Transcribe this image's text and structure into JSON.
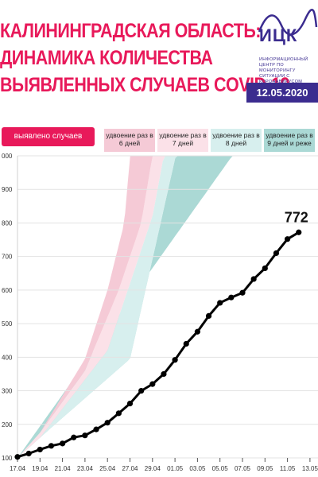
{
  "header": {
    "title_line1": "КАЛИНИНГРАДСКАЯ ОБЛАСТЬ:",
    "title_line2": "ДИНАМИКА КОЛИЧЕСТВА",
    "title_line3": "ВЫЯВЛЕННЫХ СЛУЧАЕВ COVID-19",
    "logo_name": "ИЦК",
    "logo_subtitle": "ИНФОРМАЦИОННЫЙ ЦЕНТР ПО МОНИТОРИНГУ СИТУАЦИИ С КОРОНАВИРУСОМ",
    "date": "12.05.2020"
  },
  "legend": {
    "main": "выявлено случаев",
    "d6": "удвоение раз в 6 дней",
    "d7": "удвоение раз в 7 дней",
    "d8": "удвоение раз в 8 дней",
    "d9": "удвоение раз в 9 дней и реже"
  },
  "colors": {
    "title": "#e8195a",
    "accent": "#3b2c8f",
    "legend_main": "#e8195a",
    "band_6": "#f5cad6",
    "band_7": "#fbe1e8",
    "band_8": "#d7efee",
    "band_9": "#abd9d5",
    "line": "#000000"
  },
  "chart_data": {
    "type": "line",
    "x_ticks": [
      "17.04",
      "19.04",
      "21.04",
      "23.04",
      "25.04",
      "27.04",
      "29.04",
      "01.05",
      "03.05",
      "05.05",
      "07.05",
      "09.05",
      "11.05",
      "13.05"
    ],
    "y_ticks": [
      "100",
      "200",
      "300",
      "400",
      "500",
      "600",
      "700",
      "800",
      "900",
      "000"
    ],
    "ylim": [
      100,
      1000
    ],
    "series": [
      {
        "name": "выявлено случаев",
        "x": [
          "17.04",
          "18.04",
          "19.04",
          "20.04",
          "21.04",
          "22.04",
          "23.04",
          "24.04",
          "25.04",
          "26.04",
          "27.04",
          "28.04",
          "29.04",
          "30.04",
          "01.05",
          "02.05",
          "03.05",
          "04.05",
          "05.05",
          "06.05",
          "07.05",
          "08.05",
          "09.05",
          "10.05",
          "11.05",
          "12.05"
        ],
        "values": [
          103,
          113,
          125,
          136,
          143,
          161,
          167,
          185,
          205,
          233,
          262,
          300,
          320,
          350,
          392,
          440,
          476,
          523,
          562,
          578,
          592,
          633,
          665,
          710,
          752,
          772
        ]
      }
    ],
    "annotations": [
      "772"
    ],
    "bands": [
      {
        "label": "удвоение раз в 9 дней и реже",
        "lower": [
          [
            0,
            100
          ],
          [
            14,
            760
          ]
        ],
        "upper": [
          [
            0,
            100
          ],
          [
            3,
            190
          ],
          [
            10,
            395
          ],
          [
            14,
            990
          ]
        ]
      },
      {
        "label": "удвоение раз в 8 дней",
        "lower": [
          [
            0,
            100
          ],
          [
            3,
            190
          ],
          [
            10,
            395
          ],
          [
            14,
            990
          ]
        ],
        "upper": [
          [
            0,
            100
          ],
          [
            2,
            160
          ],
          [
            8,
            420
          ],
          [
            12,
            820
          ],
          [
            13,
            1000
          ]
        ]
      },
      {
        "label": "удвоение раз в 7 дней",
        "lower": [
          [
            0,
            100
          ],
          [
            2,
            160
          ],
          [
            8,
            420
          ],
          [
            12,
            820
          ],
          [
            13,
            1000
          ]
        ],
        "upper": [
          [
            0,
            100
          ],
          [
            2,
            175
          ],
          [
            6,
            360
          ],
          [
            9,
            600
          ],
          [
            11,
            800
          ],
          [
            12,
            1000
          ]
        ]
      },
      {
        "label": "удвоение раз в 6 дней",
        "lower": [
          [
            0,
            100
          ],
          [
            2,
            175
          ],
          [
            6,
            360
          ],
          [
            9,
            600
          ],
          [
            11,
            800
          ],
          [
            12,
            1000
          ]
        ],
        "upper": [
          [
            0,
            100
          ],
          [
            2,
            175
          ],
          [
            6,
            395
          ],
          [
            8,
            600
          ],
          [
            9.5,
            800
          ],
          [
            10,
            1000
          ]
        ]
      }
    ]
  }
}
